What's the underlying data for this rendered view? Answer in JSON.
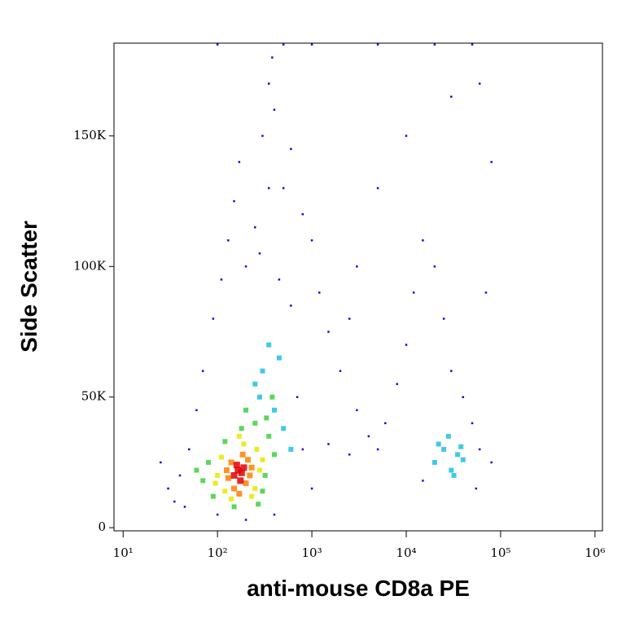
{
  "chart_data": {
    "type": "scatter",
    "xlabel": "anti-mouse CD8a PE",
    "ylabel": "Side Scatter",
    "xscale": "log",
    "xlim": [
      8,
      1200000
    ],
    "ylim": [
      -1200,
      185500
    ],
    "xticks": [
      {
        "value": 10,
        "label": "10¹"
      },
      {
        "value": 100,
        "label": "10²"
      },
      {
        "value": 1000,
        "label": "10³"
      },
      {
        "value": 10000,
        "label": "10⁴"
      },
      {
        "value": 100000,
        "label": "10⁵"
      },
      {
        "value": 1000000,
        "label": "10⁶"
      }
    ],
    "yticks": [
      0,
      {
        "value": 50000,
        "label": "50K"
      },
      {
        "value": 100000,
        "label": "100K"
      },
      {
        "value": 150000,
        "label": "150K"
      }
    ],
    "series": [
      {
        "color": "#1010d0",
        "x": [
          40,
          50,
          30,
          60,
          45,
          70,
          90,
          110,
          130,
          150,
          170,
          200,
          250,
          300,
          350,
          380,
          400,
          500,
          600,
          800,
          1000,
          1200,
          1500,
          2000,
          3000,
          4000,
          5000,
          6000,
          8000,
          10000,
          12000,
          15000,
          20000,
          25000,
          30000,
          40000,
          50000,
          60000,
          70000,
          80000,
          60000,
          30000,
          10000,
          5000,
          3000,
          2500,
          800,
          1500,
          2500,
          700,
          600,
          450,
          350,
          280,
          100,
          200,
          400,
          1000,
          15000,
          55000,
          80000,
          25,
          35,
          100,
          500,
          1000,
          5000,
          20000,
          50000
        ],
        "y": [
          20000,
          30000,
          15000,
          45000,
          8000,
          60000,
          80000,
          95000,
          110000,
          125000,
          140000,
          100000,
          115000,
          150000,
          170000,
          180000,
          160000,
          130000,
          145000,
          120000,
          110000,
          90000,
          75000,
          60000,
          45000,
          35000,
          30000,
          40000,
          55000,
          70000,
          90000,
          110000,
          100000,
          80000,
          60000,
          50000,
          40000,
          30000,
          90000,
          140000,
          170000,
          165000,
          150000,
          130000,
          100000,
          80000,
          30000,
          32000,
          28000,
          50000,
          85000,
          95000,
          130000,
          105000,
          5000,
          3000,
          5000,
          15000,
          18000,
          15000,
          25000,
          25000,
          10000,
          185000,
          185000,
          185000,
          185000,
          185000,
          185000
        ]
      },
      {
        "color": "#20c0e0",
        "x": [
          250,
          300,
          400,
          450,
          350,
          500,
          280,
          600,
          20000,
          25000,
          30000,
          35000,
          28000,
          40000,
          32000,
          22000,
          38000
        ],
        "y": [
          55000,
          60000,
          45000,
          65000,
          70000,
          38000,
          50000,
          30000,
          25000,
          30000,
          22000,
          28000,
          35000,
          26000,
          20000,
          32000,
          31000
        ]
      },
      {
        "color": "#40d040",
        "x": [
          70,
          80,
          320,
          350,
          90,
          400,
          250,
          150,
          200,
          300,
          120,
          380,
          60,
          270,
          330,
          180
        ],
        "y": [
          18000,
          25000,
          20000,
          35000,
          12000,
          28000,
          40000,
          8000,
          45000,
          14000,
          33000,
          50000,
          22000,
          9000,
          42000,
          38000
        ]
      },
      {
        "color": "#e8e800",
        "x": [
          100,
          110,
          250,
          260,
          120,
          280,
          190,
          140,
          300,
          95,
          230,
          170
        ],
        "y": [
          20000,
          27000,
          15000,
          30000,
          14000,
          22000,
          32000,
          11000,
          26000,
          17000,
          12000,
          35000
        ]
      },
      {
        "color": "#ff8000",
        "x": [
          130,
          140,
          200,
          210,
          220,
          150,
          185,
          170,
          230,
          125
        ],
        "y": [
          19000,
          25000,
          17000,
          26000,
          20000,
          15000,
          28000,
          13000,
          23000,
          22000
        ]
      },
      {
        "color": "#e00000",
        "x": [
          150,
          165,
          180,
          175,
          190,
          160
        ],
        "y": [
          20000,
          22000,
          21000,
          18000,
          23000,
          24000
        ]
      }
    ]
  }
}
